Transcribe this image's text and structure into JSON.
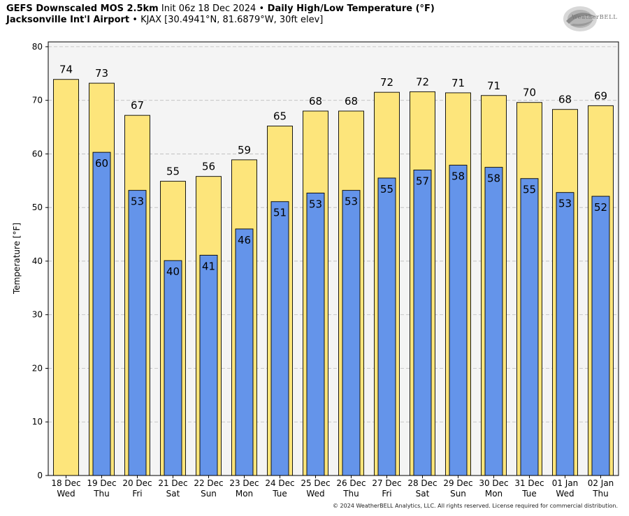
{
  "header": {
    "line1_bold1": "GEFS Downscaled MOS 2.5km",
    "line1_normal": " Init 06z 18 Dec 2024 ",
    "line1_bullet": "•",
    "line1_bold2": " Daily High/Low Temperature (°F)",
    "line2_bold": "Jacksonville Int'l Airport",
    "line2_bullet": " •",
    "line2_normal": " KJAX [30.4941°N, 81.6879°W, 30ft elev]"
  },
  "logo": {
    "text": "WeatherBELL",
    "icon": "weatherbell-swirl-logo"
  },
  "copyright": "© 2024 WeatherBELL Analytics, LLC. All rights reserved. License required for commercial distribution.",
  "colors": {
    "high": "#fde57b",
    "low": "#6494ea",
    "plot_bg": "#f4f4f4",
    "grid": "#bbbbbb"
  },
  "chart_data": {
    "type": "bar",
    "ylabel": "Temperature [°F]",
    "ylim": [
      0,
      80
    ],
    "yticks": [
      0,
      10,
      20,
      30,
      40,
      50,
      60,
      70,
      80
    ],
    "grid": true,
    "categories": [
      {
        "date": "18 Dec",
        "day": "Wed"
      },
      {
        "date": "19 Dec",
        "day": "Thu"
      },
      {
        "date": "20 Dec",
        "day": "Fri"
      },
      {
        "date": "21 Dec",
        "day": "Sat"
      },
      {
        "date": "22 Dec",
        "day": "Sun"
      },
      {
        "date": "23 Dec",
        "day": "Mon"
      },
      {
        "date": "24 Dec",
        "day": "Tue"
      },
      {
        "date": "25 Dec",
        "day": "Wed"
      },
      {
        "date": "26 Dec",
        "day": "Thu"
      },
      {
        "date": "27 Dec",
        "day": "Fri"
      },
      {
        "date": "28 Dec",
        "day": "Sat"
      },
      {
        "date": "29 Dec",
        "day": "Sun"
      },
      {
        "date": "30 Dec",
        "day": "Mon"
      },
      {
        "date": "31 Dec",
        "day": "Tue"
      },
      {
        "date": "01 Jan",
        "day": "Wed"
      },
      {
        "date": "02 Jan",
        "day": "Thu"
      }
    ],
    "series": [
      {
        "values": [
          73.9,
          73.2,
          67.2,
          54.9,
          55.8,
          58.9,
          65.2,
          68.0,
          68.0,
          71.5,
          71.6,
          71.4,
          70.9,
          69.6,
          68.3,
          69.0
        ],
        "labels": [
          "74",
          "73",
          "67",
          "55",
          "56",
          "59",
          "65",
          "68",
          "68",
          "72",
          "72",
          "71",
          "71",
          "70",
          "68",
          "69"
        ]
      },
      {
        "values": [
          null,
          60.3,
          53.2,
          40.1,
          41.1,
          46.0,
          51.1,
          52.7,
          53.2,
          55.5,
          57.0,
          57.9,
          57.5,
          55.4,
          52.8,
          52.1
        ],
        "labels": [
          "",
          "60",
          "53",
          "40",
          "41",
          "46",
          "51",
          "53",
          "53",
          "55",
          "57",
          "58",
          "58",
          "55",
          "53",
          "52"
        ]
      }
    ]
  }
}
